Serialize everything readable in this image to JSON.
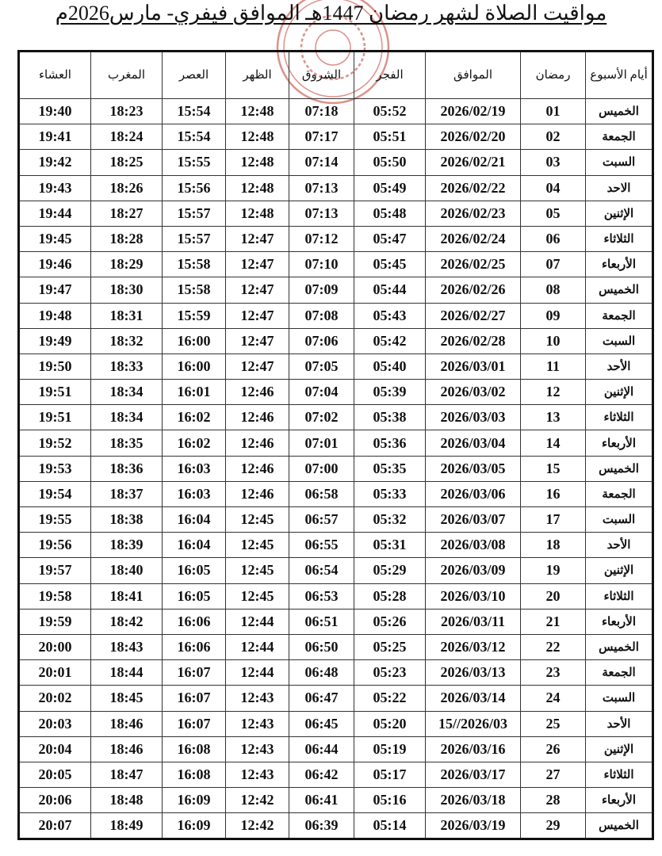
{
  "title": "مواقيت الصلاة لشهر رمضان 1447هـ الموافق فيفري- مارس2026م",
  "seal_color": "#c0392b",
  "headers": [
    "أيام الأسبوع",
    "رمضان",
    "الموافق",
    "الفجر",
    "الشروق",
    "الظهر",
    "العصر",
    "المغرب",
    "العشاء"
  ],
  "rows": [
    [
      "الخميس",
      "01",
      "2026/02/19",
      "05:52",
      "07:18",
      "12:48",
      "15:54",
      "18:23",
      "19:40"
    ],
    [
      "الجمعة",
      "02",
      "2026/02/20",
      "05:51",
      "07:17",
      "12:48",
      "15:54",
      "18:24",
      "19:41"
    ],
    [
      "السبت",
      "03",
      "2026/02/21",
      "05:50",
      "07:14",
      "12:48",
      "15:55",
      "18:25",
      "19:42"
    ],
    [
      "الاحد",
      "04",
      "2026/02/22",
      "05:49",
      "07:13",
      "12:48",
      "15:56",
      "18:26",
      "19:43"
    ],
    [
      "الإثنين",
      "05",
      "2026/02/23",
      "05:48",
      "07:13",
      "12:48",
      "15:57",
      "18:27",
      "19:44"
    ],
    [
      "الثلاثاء",
      "06",
      "2026/02/24",
      "05:47",
      "07:12",
      "12:47",
      "15:57",
      "18:28",
      "19:45"
    ],
    [
      "الأربعاء",
      "07",
      "2026/02/25",
      "05:45",
      "07:10",
      "12:47",
      "15:58",
      "18:29",
      "19:46"
    ],
    [
      "الخميس",
      "08",
      "2026/02/26",
      "05:44",
      "07:09",
      "12:47",
      "15:58",
      "18:30",
      "19:47"
    ],
    [
      "الجمعة",
      "09",
      "2026/02/27",
      "05:43",
      "07:08",
      "12:47",
      "15:59",
      "18:31",
      "19:48"
    ],
    [
      "السبت",
      "10",
      "2026/02/28",
      "05:42",
      "07:06",
      "12:47",
      "16:00",
      "18:32",
      "19:49"
    ],
    [
      "الأحد",
      "11",
      "2026/03/01",
      "05:40",
      "07:05",
      "12:47",
      "16:00",
      "18:33",
      "19:50"
    ],
    [
      "الإثنين",
      "12",
      "2026/03/02",
      "05:39",
      "07:04",
      "12:46",
      "16:01",
      "18:34",
      "19:51"
    ],
    [
      "الثلاثاء",
      "13",
      "2026/03/03",
      "05:38",
      "07:02",
      "12:46",
      "16:02",
      "18:34",
      "19:51"
    ],
    [
      "الأربعاء",
      "14",
      "2026/03/04",
      "05:36",
      "07:01",
      "12:46",
      "16:02",
      "18:35",
      "19:52"
    ],
    [
      "الخميس",
      "15",
      "2026/03/05",
      "05:35",
      "07:00",
      "12:46",
      "16:03",
      "18:36",
      "19:53"
    ],
    [
      "الجمعة",
      "16",
      "2026/03/06",
      "05:33",
      "06:58",
      "12:46",
      "16:03",
      "18:37",
      "19:54"
    ],
    [
      "السبت",
      "17",
      "2026/03/07",
      "05:32",
      "06:57",
      "12:45",
      "16:04",
      "18:38",
      "19:55"
    ],
    [
      "الأحد",
      "18",
      "2026/03/08",
      "05:31",
      "06:55",
      "12:45",
      "16:04",
      "18:39",
      "19:56"
    ],
    [
      "الإثنين",
      "19",
      "2026/03/09",
      "05:29",
      "06:54",
      "12:45",
      "16:05",
      "18:40",
      "19:57"
    ],
    [
      "الثلاثاء",
      "20",
      "2026/03/10",
      "05:28",
      "06:53",
      "12:45",
      "16:05",
      "18:41",
      "19:58"
    ],
    [
      "الأربعاء",
      "21",
      "2026/03/11",
      "05:26",
      "06:51",
      "12:44",
      "16:06",
      "18:42",
      "19:59"
    ],
    [
      "الخميس",
      "22",
      "2026/03/12",
      "05:25",
      "06:50",
      "12:44",
      "16:06",
      "18:43",
      "20:00"
    ],
    [
      "الجمعة",
      "23",
      "2026/03/13",
      "05:23",
      "06:48",
      "12:44",
      "16:07",
      "18:44",
      "20:01"
    ],
    [
      "السبت",
      "24",
      "2026/03/14",
      "05:22",
      "06:47",
      "12:43",
      "16:07",
      "18:45",
      "20:02"
    ],
    [
      "الأحد",
      "25",
      "2026/03//15",
      "05:20",
      "06:45",
      "12:43",
      "16:07",
      "18:46",
      "20:03"
    ],
    [
      "الإثنين",
      "26",
      "2026/03/16",
      "05:19",
      "06:44",
      "12:43",
      "16:08",
      "18:46",
      "20:04"
    ],
    [
      "الثلاثاء",
      "27",
      "2026/03/17",
      "05:17",
      "06:42",
      "12:43",
      "16:08",
      "18:47",
      "20:05"
    ],
    [
      "الأربعاء",
      "28",
      "2026/03/18",
      "05:16",
      "06:41",
      "12:42",
      "16:09",
      "18:48",
      "20:06"
    ],
    [
      "الخميس",
      "29",
      "2026/03/19",
      "05:14",
      "06:39",
      "12:42",
      "16:09",
      "18:49",
      "20:07"
    ]
  ]
}
